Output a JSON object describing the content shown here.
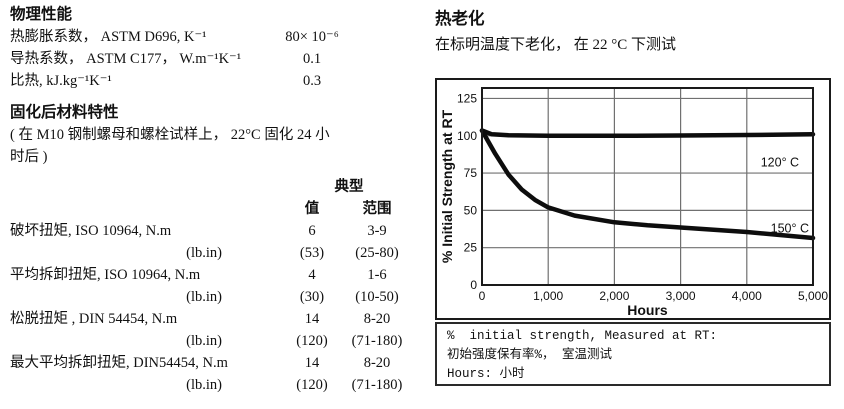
{
  "physical": {
    "title": "物理性能",
    "rows": [
      {
        "label": "热膨胀系数， ASTM D696, K⁻¹",
        "value": "80× 10⁻⁶"
      },
      {
        "label": "导热系数， ASTM C177， W.m⁻¹K⁻¹",
        "value": "0.1"
      },
      {
        "label": "比热, kJ.kg⁻¹K⁻¹",
        "value": "0.3"
      }
    ]
  },
  "cured": {
    "title": "固化后材料特性",
    "note_lines": [
      "( 在 M10 钢制螺母和螺栓试样上， 22°C 固化 24 小",
      "时后 )"
    ],
    "header_group": "典型",
    "col_value": "值",
    "col_range": "范围",
    "rows": [
      {
        "label": "破坏扭矩, ISO 10964, N.m",
        "value": "6",
        "range": "3-9"
      },
      {
        "label": "(lb.in)",
        "value": "(53)",
        "range": "(25-80)"
      },
      {
        "label": "平均拆卸扭矩, ISO 10964, N.m",
        "value": "4",
        "range": "1-6"
      },
      {
        "label": "(lb.in)",
        "value": "(30)",
        "range": "(10-50)"
      },
      {
        "label": "松脱扭矩 , DIN 54454, N.m",
        "value": "14",
        "range": "8-20"
      },
      {
        "label": "(lb.in)",
        "value": "(120)",
        "range": "(71-180)"
      },
      {
        "label": "最大平均拆卸扭矩, DIN54454, N.m",
        "value": "14",
        "range": "8-20"
      },
      {
        "label": "(lb.in)",
        "value": "(120)",
        "range": "(71-180)"
      }
    ]
  },
  "aging": {
    "title": "热老化",
    "subtitle": "在标明温度下老化， 在 22 °C 下测试",
    "caption_lines": [
      "%  initial strength, Measured at RT:",
      "初始强度保有率%， 室温测试",
      "Hours: 小时"
    ]
  },
  "chart_data": {
    "type": "line",
    "title": "",
    "xlabel": "Hours",
    "ylabel": "% Initial Strength at RT",
    "xlim": [
      0,
      5000
    ],
    "ylim": [
      0,
      132
    ],
    "grid": true,
    "legend_position": "inline-right",
    "x_ticks": [
      0,
      1000,
      2000,
      3000,
      4000,
      5000
    ],
    "x_tick_labels": [
      "0",
      "1,000",
      "2,000",
      "3,000",
      "4,000",
      "5,000"
    ],
    "y_ticks": [
      0,
      25,
      50,
      75,
      100,
      125
    ],
    "colors": {
      "line": "#0d0d0d",
      "grid": "#707070",
      "frame": "#1a1a1a"
    },
    "series": [
      {
        "name": "120° C",
        "x": [
          0,
          150,
          400,
          1000,
          2000,
          3000,
          4000,
          5000
        ],
        "y": [
          103.5,
          101,
          100.3,
          100,
          100,
          100.2,
          100.5,
          101
        ],
        "label_x": 4500,
        "label_y": 82
      },
      {
        "name": "150° C",
        "x": [
          0,
          200,
          400,
          600,
          800,
          1000,
          1400,
          2000,
          2500,
          3000,
          3500,
          4000,
          4500,
          5000
        ],
        "y": [
          103.5,
          88,
          74,
          64,
          57,
          52,
          46.5,
          42,
          40,
          38.5,
          37,
          35.5,
          33.5,
          31.5
        ],
        "label_x": 4650,
        "label_y": 38
      }
    ]
  }
}
